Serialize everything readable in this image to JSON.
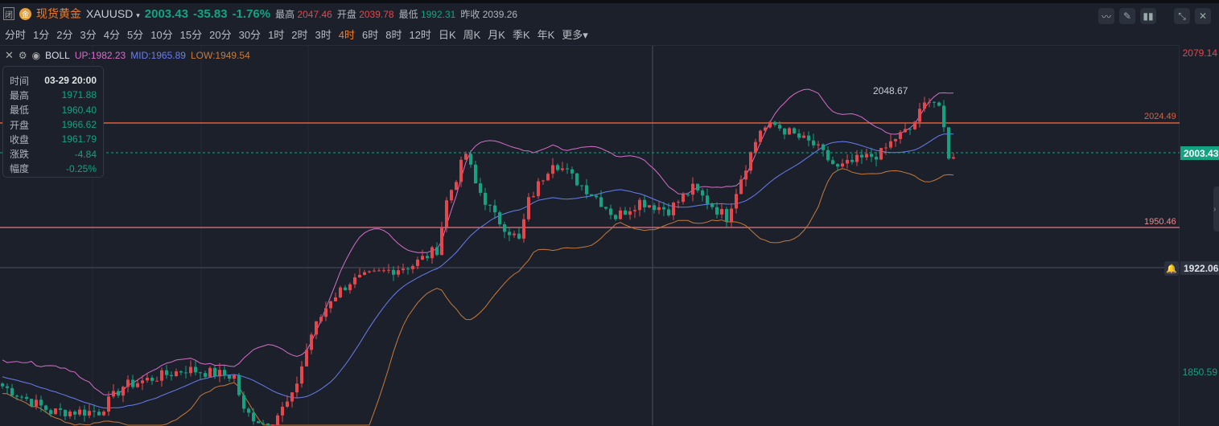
{
  "header": {
    "closed_badge": "闭",
    "coin_icon": "金",
    "name": "现货黄金",
    "symbol": "XAUUSD",
    "price": "2003.43",
    "change": "-35.83",
    "change_pct": "-1.76%",
    "high_label": "最高",
    "high": "2047.46",
    "open_label": "开盘",
    "open": "2039.78",
    "low_label": "最低",
    "low": "1992.31",
    "prev_label": "昨收",
    "prev": "2039.26"
  },
  "periods": [
    "分时",
    "1分",
    "2分",
    "3分",
    "4分",
    "5分",
    "10分",
    "15分",
    "20分",
    "30分",
    "1时",
    "2时",
    "3时",
    "4时",
    "6时",
    "8时",
    "12时",
    "日K",
    "周K",
    "月K",
    "季K",
    "年K",
    "更多▾"
  ],
  "active_period": "4时",
  "toolbar": [
    "indicator-icon",
    "draw-icon",
    "candle-style-icon",
    "collapse-icon",
    "close-icon"
  ],
  "boll": {
    "name": "BOLL",
    "up": "UP:1982.23",
    "mid": "MID:1965.89",
    "low": "LOW:1949.54"
  },
  "tooltip": {
    "rows": [
      [
        "时间",
        "03-29 20:00"
      ],
      [
        "最高",
        "1971.88"
      ],
      [
        "最低",
        "1960.40"
      ],
      [
        "开盘",
        "1966.62"
      ],
      [
        "收盘",
        "1961.79"
      ],
      [
        "涨跌",
        "-4.84"
      ],
      [
        "幅度",
        "-0.25%"
      ]
    ]
  },
  "axis": {
    "top": "2079.14",
    "bottom": "1850.59"
  },
  "lines": {
    "resistance": "2024.49",
    "support": "1950.46",
    "current": "2003.43",
    "alert": "1922.06",
    "peak_label": "2048.67"
  },
  "colors": {
    "up": "#e5474d",
    "down": "#13a383",
    "boll_up": "#d46fc6",
    "boll_mid": "#6a7ef0",
    "boll_low": "#c77a3a"
  },
  "chart_data": {
    "type": "candlestick",
    "ylim": [
      1838,
      2079.14
    ],
    "keypoints": [
      [
        0,
        1838
      ],
      [
        10,
        1820
      ],
      [
        20,
        1820
      ],
      [
        25,
        1838
      ],
      [
        38,
        1850
      ],
      [
        48,
        1845
      ],
      [
        50,
        1820
      ],
      [
        55,
        1810
      ],
      [
        60,
        1830
      ],
      [
        64,
        1875
      ],
      [
        68,
        1900
      ],
      [
        72,
        1912
      ],
      [
        80,
        1920
      ],
      [
        85,
        1924
      ],
      [
        90,
        1935
      ],
      [
        92,
        1969
      ],
      [
        96,
        2003
      ],
      [
        98,
        1981
      ],
      [
        102,
        1958
      ],
      [
        107,
        1941
      ],
      [
        109,
        1969
      ],
      [
        114,
        1998
      ],
      [
        118,
        1986
      ],
      [
        123,
        1972
      ],
      [
        127,
        1958
      ],
      [
        132,
        1969
      ],
      [
        138,
        1963
      ],
      [
        143,
        1978
      ],
      [
        148,
        1963
      ],
      [
        150,
        1958
      ],
      [
        153,
        1986
      ],
      [
        157,
        2020
      ],
      [
        160,
        2023
      ],
      [
        165,
        2014
      ],
      [
        168,
        2009
      ],
      [
        173,
        1992
      ],
      [
        177,
        1998
      ],
      [
        182,
        2003
      ],
      [
        185,
        2014
      ],
      [
        188,
        2020
      ],
      [
        192,
        2043
      ],
      [
        194,
        2037
      ],
      [
        196,
        1998
      ],
      [
        197,
        2003
      ]
    ]
  }
}
